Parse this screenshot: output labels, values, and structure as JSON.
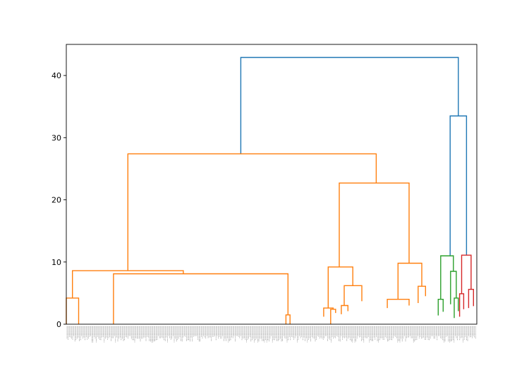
{
  "chart_data": {
    "type": "dendrogram",
    "title": "",
    "xlabel": "",
    "ylabel": "",
    "ylim": [
      0,
      45
    ],
    "yticks": [
      0,
      10,
      20,
      30,
      40
    ],
    "xlim": [
      0,
      1000
    ],
    "leaf_labels_legible": false,
    "colors": {
      "above_threshold": "#1f77b4",
      "cluster_1": "#ff7f0e",
      "cluster_2": "#2ca02c",
      "cluster_3": "#d62728"
    },
    "links": [
      {
        "x": [
          425,
          425,
          955,
          955
        ],
        "y": [
          27.4,
          42.9,
          42.9,
          33.5
        ],
        "color": "above_threshold"
      },
      {
        "x": [
          935,
          935,
          975,
          975
        ],
        "y": [
          11.0,
          33.5,
          33.5,
          11.1
        ],
        "color": "above_threshold"
      },
      {
        "x": [
          150,
          150,
          755,
          755
        ],
        "y": [
          8.6,
          27.4,
          27.4,
          22.7
        ],
        "color": "cluster_1"
      },
      {
        "x": [
          15,
          15,
          285,
          285
        ],
        "y": [
          4.2,
          8.6,
          8.6,
          8.1
        ],
        "color": "cluster_1"
      },
      {
        "x": [
          0,
          0,
          30,
          30
        ],
        "y": [
          0,
          4.2,
          4.2,
          0
        ],
        "color": "cluster_1"
      },
      {
        "x": [
          115,
          115,
          540,
          540
        ],
        "y": [
          0,
          8.1,
          8.1,
          1.5
        ],
        "color": "cluster_1"
      },
      {
        "x": [
          535,
          535,
          545,
          545
        ],
        "y": [
          0,
          1.5,
          1.5,
          0
        ],
        "color": "cluster_1"
      },
      {
        "x": [
          665,
          665,
          835,
          835
        ],
        "y": [
          9.2,
          22.7,
          22.7,
          9.8
        ],
        "color": "cluster_1"
      },
      {
        "x": [
          638,
          638,
          698,
          698
        ],
        "y": [
          2.6,
          9.2,
          9.2,
          6.2
        ],
        "color": "cluster_1"
      },
      {
        "x": [
          627,
          627,
          650,
          650
        ],
        "y": [
          1.2,
          2.6,
          2.6,
          2.4
        ],
        "color": "cluster_1"
      },
      {
        "x": [
          644,
          644,
          656,
          656
        ],
        "y": [
          0,
          2.4,
          2.4,
          1.8
        ],
        "color": "cluster_1"
      },
      {
        "x": [
          677,
          677,
          720,
          720
        ],
        "y": [
          3.0,
          6.2,
          6.2,
          3.7
        ],
        "color": "cluster_1"
      },
      {
        "x": [
          670,
          670,
          686,
          686
        ],
        "y": [
          1.6,
          3.0,
          3.0,
          2.1
        ],
        "color": "cluster_1"
      },
      {
        "x": [
          808,
          808,
          866,
          866
        ],
        "y": [
          4.0,
          9.8,
          9.8,
          6.1
        ],
        "color": "cluster_1"
      },
      {
        "x": [
          782,
          782,
          835,
          835
        ],
        "y": [
          2.6,
          4.0,
          4.0,
          3.0
        ],
        "color": "cluster_1"
      },
      {
        "x": [
          857,
          857,
          875,
          875
        ],
        "y": [
          3.4,
          6.1,
          6.1,
          4.5
        ],
        "color": "cluster_1"
      },
      {
        "x": [
          912,
          912,
          943,
          943
        ],
        "y": [
          4.0,
          11.0,
          11.0,
          8.5
        ],
        "color": "cluster_2"
      },
      {
        "x": [
          906,
          906,
          918,
          918
        ],
        "y": [
          1.4,
          4.0,
          4.0,
          2.0
        ],
        "color": "cluster_2"
      },
      {
        "x": [
          936,
          936,
          950,
          950
        ],
        "y": [
          3.2,
          8.5,
          8.5,
          4.2
        ],
        "color": "cluster_2"
      },
      {
        "x": [
          945,
          945,
          955,
          955
        ],
        "y": [
          1.0,
          4.2,
          4.2,
          2.1
        ],
        "color": "cluster_2"
      },
      {
        "x": [
          963,
          963,
          986,
          986
        ],
        "y": [
          4.9,
          11.1,
          11.1,
          5.6
        ],
        "color": "cluster_3"
      },
      {
        "x": [
          958,
          958,
          968,
          968
        ],
        "y": [
          1.2,
          4.9,
          4.9,
          2.4
        ],
        "color": "cluster_3"
      },
      {
        "x": [
          980,
          980,
          992,
          992
        ],
        "y": [
          2.6,
          5.6,
          5.6,
          2.9
        ],
        "color": "cluster_3"
      }
    ]
  }
}
